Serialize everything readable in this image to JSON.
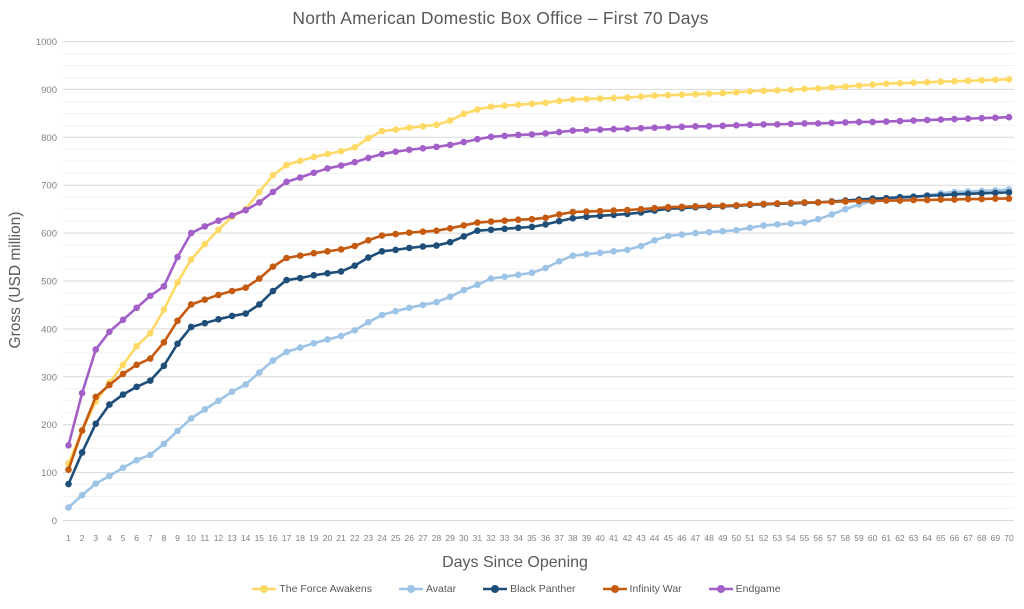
{
  "chart": {
    "title": "North American Domestic Box Office – First 70 Days",
    "x_axis_title": "Days Since Opening",
    "y_axis_title": "Gross (USD million)"
  },
  "colors": {
    "title_text": "#595959",
    "tick_text": "#7F7F7F",
    "grid_major": "#D9D9D9",
    "grid_minor": "#F2F2F2"
  },
  "chart_data": {
    "type": "line",
    "title": "North American Domestic Box Office – First 70 Days",
    "xlabel": "Days Since Opening",
    "ylabel": "Gross (USD million)",
    "xlim": [
      1,
      70
    ],
    "ylim": [
      0,
      1000
    ],
    "y_ticks": [
      0,
      100,
      200,
      300,
      400,
      500,
      600,
      700,
      800,
      900,
      1000
    ],
    "y_tick_step": 100,
    "minor_grid_step": 25,
    "grid": true,
    "marker": "circle",
    "legend_position": "bottom",
    "x": [
      1,
      2,
      3,
      4,
      5,
      6,
      7,
      8,
      9,
      10,
      11,
      12,
      13,
      14,
      15,
      16,
      17,
      18,
      19,
      20,
      21,
      22,
      23,
      24,
      25,
      26,
      27,
      28,
      29,
      30,
      31,
      32,
      33,
      34,
      35,
      36,
      37,
      38,
      39,
      40,
      41,
      42,
      43,
      44,
      45,
      46,
      47,
      48,
      49,
      50,
      51,
      52,
      53,
      54,
      55,
      56,
      57,
      58,
      59,
      60,
      61,
      62,
      63,
      64,
      65,
      66,
      67,
      68,
      69,
      70
    ],
    "series": [
      {
        "name": "The Force Awakens",
        "color": "#FFD966",
        "values": [
          119,
          187,
          248,
          288,
          325,
          364,
          391,
          440,
          497,
          545,
          577,
          607,
          634,
          650,
          686,
          721,
          742,
          751,
          759,
          765,
          771,
          779,
          798,
          813,
          816,
          820,
          823,
          826,
          835,
          849,
          858,
          864,
          866,
          868,
          870,
          872,
          876,
          879,
          880,
          881,
          882,
          883,
          885,
          887,
          888,
          889,
          890,
          891,
          892,
          894,
          896,
          897,
          898,
          899,
          901,
          902,
          904,
          906,
          908,
          910,
          912,
          913,
          914,
          915,
          916,
          917,
          918,
          919,
          920,
          921
        ]
      },
      {
        "name": "Avatar",
        "color": "#9DC3E6",
        "values": [
          27,
          53,
          77,
          93,
          110,
          126,
          137,
          160,
          187,
          213,
          232,
          250,
          269,
          284,
          309,
          334,
          352,
          361,
          370,
          378,
          385,
          397,
          414,
          429,
          437,
          444,
          450,
          456,
          467,
          481,
          492,
          505,
          509,
          513,
          517,
          527,
          541,
          553,
          556,
          559,
          562,
          565,
          573,
          585,
          594,
          597,
          600,
          602,
          604,
          606,
          611,
          616,
          618,
          620,
          622,
          629,
          639,
          650,
          660,
          666,
          669,
          671,
          674,
          679,
          683,
          686,
          687,
          688,
          689,
          691
        ]
      },
      {
        "name": "Black Panther",
        "color": "#1F4E79",
        "values": [
          76,
          142,
          202,
          242,
          263,
          279,
          292,
          323,
          369,
          404,
          412,
          420,
          427,
          432,
          451,
          479,
          502,
          506,
          512,
          516,
          520,
          532,
          549,
          562,
          565,
          569,
          572,
          574,
          581,
          593,
          605,
          607,
          609,
          611,
          613,
          618,
          625,
          631,
          634,
          636,
          638,
          640,
          643,
          647,
          651,
          652,
          654,
          655,
          656,
          657,
          659,
          660,
          661,
          662,
          663,
          664,
          666,
          668,
          670,
          672,
          673,
          675,
          676,
          678,
          679,
          681,
          682,
          683,
          684,
          685
        ]
      },
      {
        "name": "Infinity War",
        "color": "#C55A11",
        "values": [
          106,
          188,
          258,
          283,
          306,
          325,
          338,
          372,
          417,
          451,
          461,
          471,
          479,
          486,
          505,
          530,
          548,
          553,
          558,
          562,
          566,
          573,
          585,
          595,
          598,
          601,
          603,
          605,
          610,
          616,
          622,
          624,
          626,
          628,
          629,
          632,
          639,
          644,
          645,
          646,
          647,
          648,
          650,
          652,
          654,
          655,
          656,
          657,
          657,
          658,
          660,
          661,
          662,
          663,
          664,
          664,
          665,
          666,
          667,
          667,
          668,
          668,
          669,
          669,
          670,
          670,
          671,
          671,
          672,
          672
        ]
      },
      {
        "name": "Endgame",
        "color": "#A35FC8",
        "values": [
          157,
          266,
          357,
          394,
          419,
          444,
          469,
          489,
          550,
          600,
          614,
          626,
          637,
          648,
          664,
          686,
          707,
          716,
          726,
          735,
          741,
          748,
          757,
          765,
          770,
          774,
          777,
          780,
          784,
          790,
          796,
          801,
          803,
          805,
          806,
          808,
          811,
          814,
          815,
          816,
          817,
          818,
          819,
          820,
          821,
          822,
          823,
          823,
          824,
          825,
          826,
          827,
          827,
          828,
          829,
          829,
          830,
          831,
          832,
          832,
          833,
          834,
          835,
          836,
          837,
          838,
          839,
          840,
          841,
          842
        ]
      }
    ]
  }
}
